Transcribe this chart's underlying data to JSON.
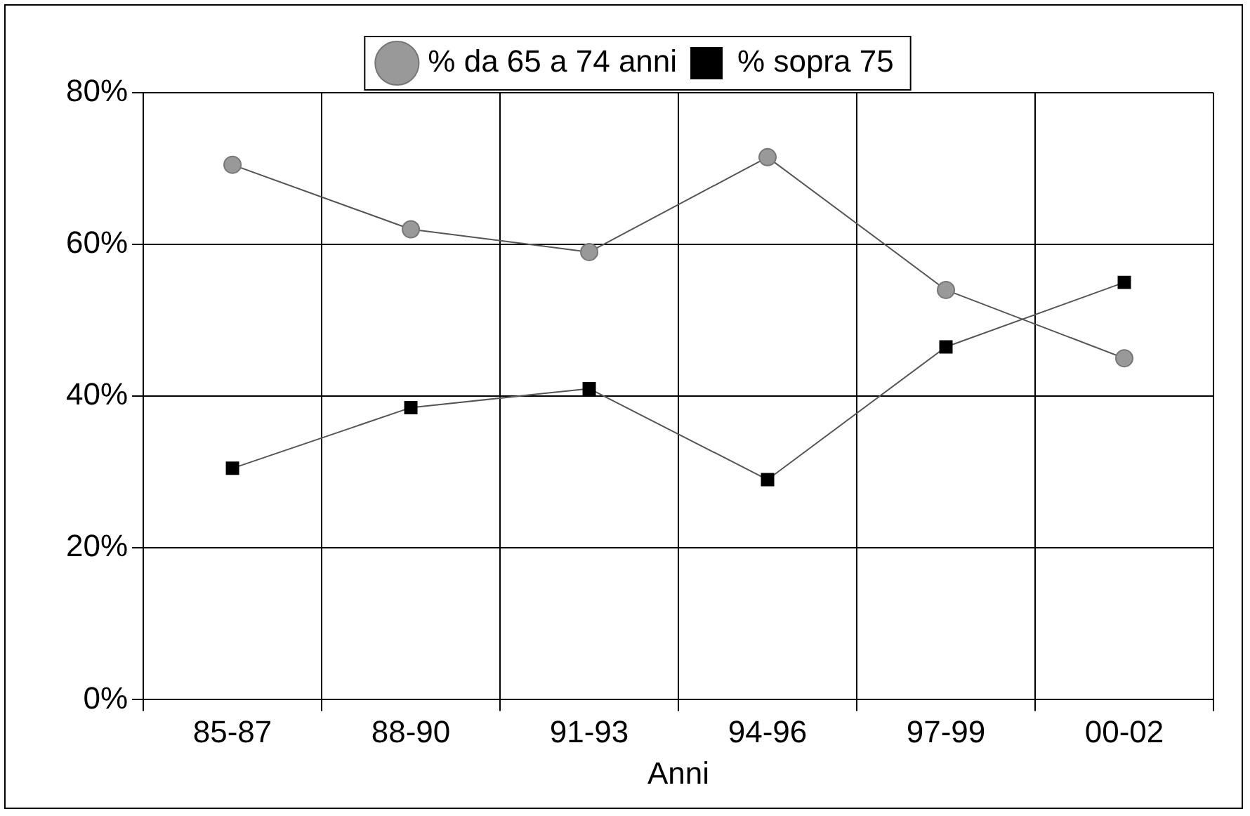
{
  "chart_data": {
    "type": "line",
    "xlabel": "Anni",
    "categories": [
      "85-87",
      "88-90",
      "91-93",
      "94-96",
      "97-99",
      "00-02"
    ],
    "series": [
      {
        "name": "% da 65 a 74 anni",
        "color": "#999999",
        "marker": "circle",
        "values": [
          70.5,
          62,
          59,
          71.5,
          54,
          45
        ]
      },
      {
        "name": "% sopra 75",
        "color": "#000000",
        "marker": "square",
        "values": [
          30.5,
          38.5,
          41,
          29,
          46.5,
          55
        ]
      }
    ],
    "ylim": [
      0,
      80
    ],
    "yticks": [
      {
        "value": 0,
        "label": "0%"
      },
      {
        "value": 20,
        "label": "20%"
      },
      {
        "value": 40,
        "label": "40%"
      },
      {
        "value": 60,
        "label": "60%"
      },
      {
        "value": 80,
        "label": "80%"
      }
    ],
    "grid": true,
    "legend": "top",
    "line_style": "solid"
  }
}
